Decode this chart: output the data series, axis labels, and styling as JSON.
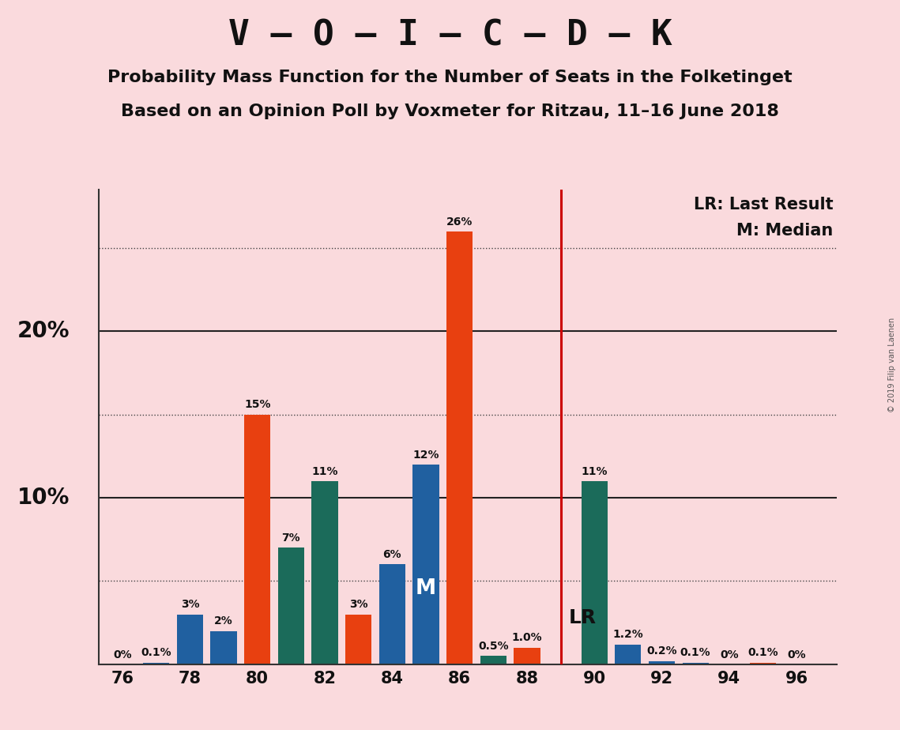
{
  "title1": "V – O – I – C – D – K",
  "title2": "Probability Mass Function for the Number of Seats in the Folketinget",
  "title3": "Based on an Opinion Poll by Voxmeter for Ritzau, 11–16 June 2018",
  "copyright": "© 2019 Filip van Laenen",
  "background_color": "#fadadd",
  "seats": [
    76,
    77,
    78,
    79,
    80,
    81,
    82,
    83,
    84,
    85,
    86,
    87,
    88,
    89,
    90,
    91,
    92,
    93,
    94,
    95,
    96
  ],
  "values": [
    0.001,
    0.1,
    3.0,
    2.0,
    15.0,
    7.0,
    11.0,
    3.0,
    6.0,
    12.0,
    26.0,
    0.5,
    1.0,
    0.001,
    11.0,
    1.2,
    0.2,
    0.1,
    0.001,
    0.1,
    0.001
  ],
  "colors": [
    "#2060a0",
    "#2060a0",
    "#2060a0",
    "#2060a0",
    "#e84010",
    "#1b6b5a",
    "#1b6b5a",
    "#e84010",
    "#2060a0",
    "#2060a0",
    "#e84010",
    "#1b6b5a",
    "#e84010",
    "#e84010",
    "#1b6b5a",
    "#2060a0",
    "#2060a0",
    "#2060a0",
    "#2060a0",
    "#e84010",
    "#2060a0"
  ],
  "labels": [
    "0%",
    "0.1%",
    "3%",
    "2%",
    "15%",
    "7%",
    "11%",
    "3%",
    "6%",
    "12%",
    "26%",
    "0.5%",
    "1.0%",
    "",
    "11%",
    "1.2%",
    "0.2%",
    "0.1%",
    "0%",
    "0.1%",
    "0%"
  ],
  "lr_seat": 89,
  "median_seat": 85,
  "lr_label": "LR",
  "median_label": "M",
  "legend_lr": "LR: Last Result",
  "legend_m": "M: Median",
  "solid_hlines": [
    10.0,
    20.0
  ],
  "dotted_hlines": [
    5.0,
    15.0,
    25.0
  ],
  "bar_width": 0.78,
  "ylim": [
    0,
    28.5
  ],
  "xlim_left": 75.3,
  "xlim_right": 97.2,
  "lr_color": "#cc0000",
  "left_spine_x": 75.3,
  "pct_labels": [
    [
      "10%",
      10.0
    ],
    [
      "20%",
      20.0
    ]
  ],
  "pct_label_fontsize": 20,
  "bar_label_fontsize": 10,
  "xtick_fontsize": 15,
  "title1_fontsize": 32,
  "title2_fontsize": 16,
  "title3_fontsize": 16,
  "legend_fontsize": 15,
  "lr_label_fontsize": 18,
  "median_label_fontsize": 19
}
